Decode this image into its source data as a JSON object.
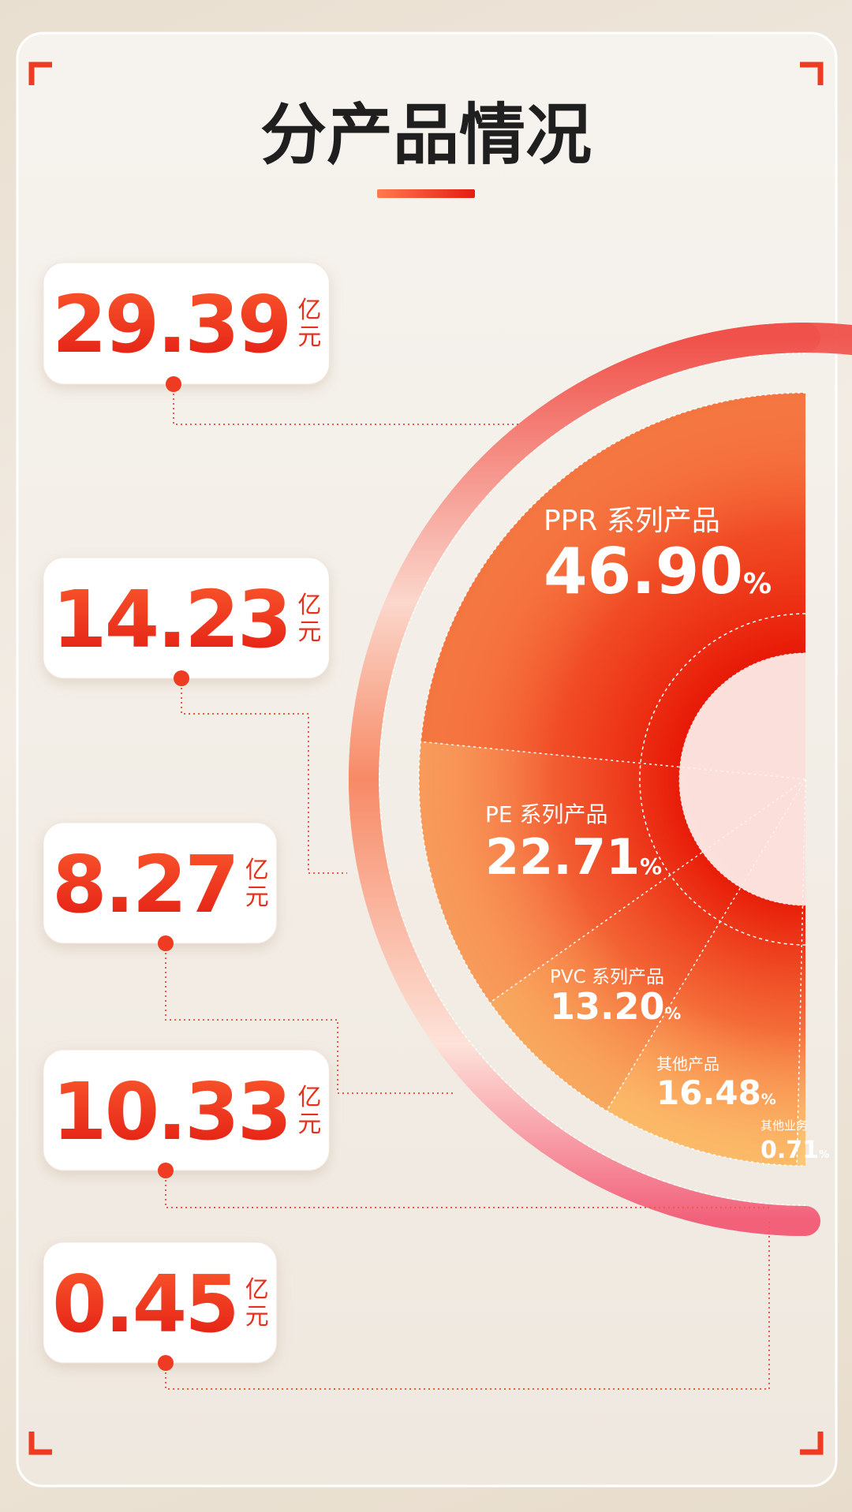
{
  "chart_data": {
    "type": "pie",
    "title": "分产品情况",
    "categories": [
      "PPR 系列产品",
      "PE 系列产品",
      "PVC 系列产品",
      "其他产品",
      "其他业务"
    ],
    "values": [
      46.9,
      22.71,
      13.2,
      16.48,
      0.71
    ],
    "value_labels": [
      "46.90",
      "22.71",
      "13.20",
      "16.48",
      "0.71"
    ],
    "percent_unit": "%",
    "colors": [
      "#f4753f",
      "#f79a5a",
      "#f8a85e",
      "#fbba68",
      "#fcc877"
    ],
    "amounts": [
      29.39,
      14.23,
      8.27,
      10.33,
      0.45
    ],
    "amount_unit": "亿元"
  }
}
